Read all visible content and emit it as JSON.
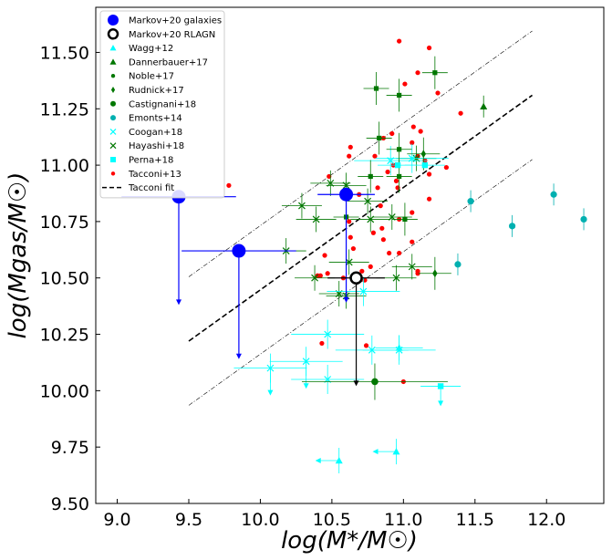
{
  "chart_data": {
    "type": "scatter",
    "xlabel": "log(M*/M☉)",
    "ylabel": "log(Mgas/M☉)",
    "xlim": [
      8.85,
      12.4
    ],
    "ylim": [
      9.5,
      11.7
    ],
    "xticks": [
      "9.0",
      "9.5",
      "10.0",
      "10.5",
      "11.0",
      "11.5",
      "12.0"
    ],
    "yticks": [
      "9.50",
      "9.75",
      "10.00",
      "10.25",
      "10.50",
      "10.75",
      "11.00",
      "11.25",
      "11.50"
    ],
    "legend_position": "top-left",
    "legend": [
      {
        "name": "Markov+20 galaxies",
        "color": "#0000ff",
        "marker": "circle"
      },
      {
        "name": "Markov+20 RLAGN",
        "color": "#000000",
        "marker": "open-circle"
      },
      {
        "name": "Wagg+12",
        "color": "#00ffff",
        "marker": "triangle"
      },
      {
        "name": "Dannerbauer+17",
        "color": "#007700",
        "marker": "triangle"
      },
      {
        "name": "Noble+17",
        "color": "#007700",
        "marker": "dot"
      },
      {
        "name": "Rudnick+17",
        "color": "#007700",
        "marker": "diamond"
      },
      {
        "name": "Castignani+18",
        "color": "#007700",
        "marker": "circle"
      },
      {
        "name": "Emonts+14",
        "color": "#00b0b0",
        "marker": "circle"
      },
      {
        "name": "Coogan+18",
        "color": "#00ffff",
        "marker": "x"
      },
      {
        "name": "Hayashi+18",
        "color": "#007700",
        "marker": "x"
      },
      {
        "name": "Perna+18",
        "color": "#00ffff",
        "marker": "square"
      },
      {
        "name": "Tacconi+13",
        "color": "#ff0000",
        "marker": "dot"
      },
      {
        "name": "Tacconi fit",
        "color": "#000000",
        "marker": "dashed-line"
      }
    ],
    "fit": {
      "x": [
        9.5,
        11.9
      ],
      "y": [
        10.22,
        11.31
      ],
      "scatter": 0.285
    },
    "markov_galaxies": [
      {
        "x": 9.43,
        "y": 10.86,
        "xerr": 0.4,
        "upper_to": 10.38
      },
      {
        "x": 9.85,
        "y": 10.62,
        "xerr": 0.4,
        "upper_to": 10.14
      },
      {
        "x": 10.6,
        "y": 10.87,
        "xerr": 0.2,
        "upper_to": 10.39
      }
    ],
    "markov_rlagn": [
      {
        "x": 10.67,
        "y": 10.5,
        "xerr": 0.2,
        "upper_to": 10.02
      }
    ],
    "wagg12": [
      {
        "x": 10.55,
        "y": 9.69,
        "arrow": "left"
      },
      {
        "x": 10.95,
        "y": 9.73,
        "arrow": "left"
      },
      {
        "x": 10.97,
        "y": 10.19
      }
    ],
    "dannerbauer17": [
      {
        "x": 11.56,
        "y": 11.26
      }
    ],
    "noble17": [
      {
        "x": 11.22,
        "y": 11.41
      },
      {
        "x": 10.81,
        "y": 11.34
      },
      {
        "x": 10.97,
        "y": 11.31
      },
      {
        "x": 10.83,
        "y": 11.12
      },
      {
        "x": 10.97,
        "y": 11.07
      },
      {
        "x": 10.77,
        "y": 10.95
      },
      {
        "x": 10.97,
        "y": 10.95
      },
      {
        "x": 11.01,
        "y": 10.76
      },
      {
        "x": 10.6,
        "y": 10.77
      }
    ],
    "rudnick17": [
      {
        "x": 11.22,
        "y": 10.52
      },
      {
        "x": 11.14,
        "y": 11.05
      }
    ],
    "castignani18": [
      {
        "x": 10.8,
        "y": 10.04
      }
    ],
    "emonts14": [
      {
        "x": 11.47,
        "y": 10.84
      },
      {
        "x": 11.38,
        "y": 10.56
      },
      {
        "x": 11.76,
        "y": 10.73
      },
      {
        "x": 12.05,
        "y": 10.87
      },
      {
        "x": 12.26,
        "y": 10.76
      }
    ],
    "coogan18": [
      {
        "x": 10.07,
        "y": 10.1,
        "arrow": "down"
      },
      {
        "x": 10.32,
        "y": 10.13,
        "arrow": "down"
      },
      {
        "x": 10.47,
        "y": 10.25
      },
      {
        "x": 10.47,
        "y": 10.05
      },
      {
        "x": 10.72,
        "y": 10.44
      },
      {
        "x": 10.78,
        "y": 10.18
      },
      {
        "x": 10.91,
        "y": 11.02
      },
      {
        "x": 11.06,
        "y": 11.03
      },
      {
        "x": 10.97,
        "y": 10.18
      }
    ],
    "hayashi18": [
      {
        "x": 10.49,
        "y": 10.92
      },
      {
        "x": 10.6,
        "y": 10.91
      },
      {
        "x": 10.29,
        "y": 10.82
      },
      {
        "x": 10.39,
        "y": 10.76
      },
      {
        "x": 10.18,
        "y": 10.62
      },
      {
        "x": 10.38,
        "y": 10.5
      },
      {
        "x": 10.55,
        "y": 10.43
      },
      {
        "x": 10.62,
        "y": 10.57
      },
      {
        "x": 10.77,
        "y": 10.76
      },
      {
        "x": 10.92,
        "y": 10.77
      },
      {
        "x": 10.75,
        "y": 10.84
      },
      {
        "x": 10.95,
        "y": 10.5
      },
      {
        "x": 11.06,
        "y": 10.55
      },
      {
        "x": 11.09,
        "y": 11.03
      },
      {
        "x": 10.6,
        "y": 10.42
      }
    ],
    "perna18": [
      {
        "x": 11.26,
        "y": 10.02,
        "arrow": "down"
      },
      {
        "x": 11.15,
        "y": 11.0
      },
      {
        "x": 10.96,
        "y": 11.0
      }
    ],
    "tacconi13": [
      {
        "x": 10.97,
        "y": 11.55
      },
      {
        "x": 11.18,
        "y": 11.52
      },
      {
        "x": 11.1,
        "y": 11.41
      },
      {
        "x": 11.01,
        "y": 11.36
      },
      {
        "x": 11.24,
        "y": 11.32
      },
      {
        "x": 11.4,
        "y": 11.23
      },
      {
        "x": 11.07,
        "y": 11.17
      },
      {
        "x": 11.12,
        "y": 11.15
      },
      {
        "x": 10.92,
        "y": 11.14
      },
      {
        "x": 10.86,
        "y": 11.12
      },
      {
        "x": 11.06,
        "y": 11.1
      },
      {
        "x": 10.63,
        "y": 11.08
      },
      {
        "x": 10.62,
        "y": 11.04
      },
      {
        "x": 10.8,
        "y": 11.04
      },
      {
        "x": 11.1,
        "y": 11.04
      },
      {
        "x": 11.15,
        "y": 11.02
      },
      {
        "x": 10.93,
        "y": 11.0
      },
      {
        "x": 11.3,
        "y": 10.99
      },
      {
        "x": 10.89,
        "y": 10.97
      },
      {
        "x": 11.18,
        "y": 10.96
      },
      {
        "x": 10.48,
        "y": 10.95
      },
      {
        "x": 10.95,
        "y": 10.93
      },
      {
        "x": 10.82,
        "y": 10.9
      },
      {
        "x": 10.96,
        "y": 10.9
      },
      {
        "x": 9.78,
        "y": 10.91
      },
      {
        "x": 10.69,
        "y": 10.87
      },
      {
        "x": 11.18,
        "y": 10.85
      },
      {
        "x": 10.84,
        "y": 10.82
      },
      {
        "x": 11.06,
        "y": 10.79
      },
      {
        "x": 10.97,
        "y": 10.76
      },
      {
        "x": 10.62,
        "y": 10.75
      },
      {
        "x": 10.85,
        "y": 10.72
      },
      {
        "x": 10.79,
        "y": 10.7
      },
      {
        "x": 10.63,
        "y": 10.68
      },
      {
        "x": 10.86,
        "y": 10.67
      },
      {
        "x": 11.06,
        "y": 10.66
      },
      {
        "x": 10.65,
        "y": 10.63
      },
      {
        "x": 10.9,
        "y": 10.61
      },
      {
        "x": 10.97,
        "y": 10.61
      },
      {
        "x": 10.45,
        "y": 10.6
      },
      {
        "x": 10.77,
        "y": 10.55
      },
      {
        "x": 10.71,
        "y": 10.53
      },
      {
        "x": 11.1,
        "y": 10.53
      },
      {
        "x": 10.47,
        "y": 10.52
      },
      {
        "x": 11.1,
        "y": 10.52
      },
      {
        "x": 10.42,
        "y": 10.51
      },
      {
        "x": 10.4,
        "y": 10.51
      },
      {
        "x": 10.58,
        "y": 10.5
      },
      {
        "x": 10.73,
        "y": 10.49
      },
      {
        "x": 10.43,
        "y": 10.21
      },
      {
        "x": 10.74,
        "y": 10.2
      },
      {
        "x": 11.0,
        "y": 10.04
      }
    ]
  }
}
